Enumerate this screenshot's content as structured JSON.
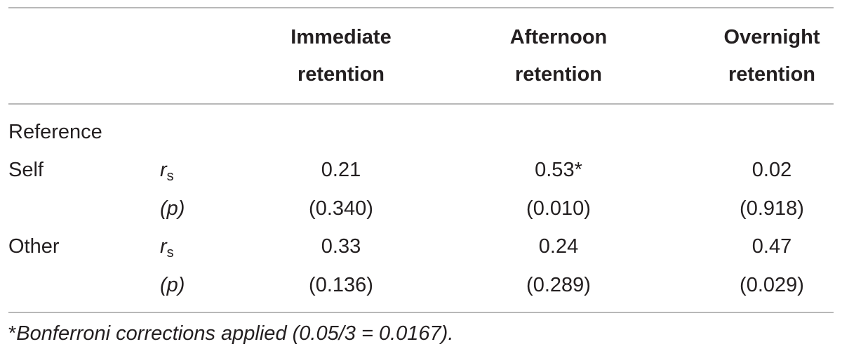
{
  "table": {
    "headers": [
      {
        "line1": "Immediate",
        "line2": "retention"
      },
      {
        "line1": "Afternoon",
        "line2": "retention"
      },
      {
        "line1": "Overnight",
        "line2": "retention"
      }
    ],
    "section_label": "Reference",
    "rows": [
      {
        "label": "Self",
        "r_symbol": "r",
        "r_subscript": "s",
        "p_symbol": "(p)",
        "r_values": [
          "0.21",
          "0.53*",
          "0.02"
        ],
        "p_values": [
          "(0.340)",
          "(0.010)",
          "(0.918)"
        ]
      },
      {
        "label": "Other",
        "r_symbol": "r",
        "r_subscript": "s",
        "p_symbol": "(p)",
        "r_values": [
          "0.33",
          "0.24",
          "0.47"
        ],
        "p_values": [
          "(0.136)",
          "(0.289)",
          "(0.029)"
        ]
      }
    ]
  },
  "footnote": {
    "marker": "*",
    "text": "Bonferroni corrections applied (0.05/3 = 0.0167)."
  }
}
